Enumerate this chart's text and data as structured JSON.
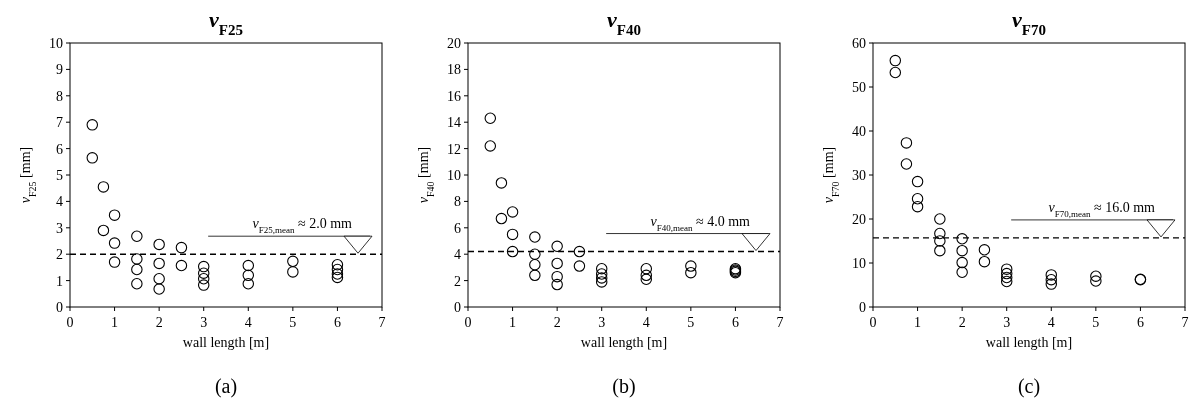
{
  "chart_data": [
    {
      "type": "scatter",
      "title": "v$_{F25}$",
      "xlabel": "wall length [m]",
      "ylabel": "v$_{F25}$ [mm]",
      "annotations": [
        "(a)"
      ],
      "marker": "circle",
      "grid": false,
      "xlim": [
        0,
        7
      ],
      "xticks": [
        0,
        1,
        2,
        3,
        4,
        5,
        6,
        7
      ],
      "ylim": [
        0,
        10
      ],
      "yticks": [
        0,
        1,
        2,
        3,
        4,
        5,
        6,
        7,
        8,
        9,
        10
      ],
      "ref_lines": [
        {
          "axis": "y",
          "value": 2.0,
          "label": "v$_{F25,mean}$ ≈ 2.0 mm",
          "line_style": "dashed",
          "color": "#000000"
        }
      ],
      "series": [
        {
          "color": "#000000",
          "x": [
            0.5,
            0.5,
            0.75,
            0.75,
            1,
            1,
            1,
            1.5,
            1.5,
            1.5,
            1.5,
            2,
            2,
            2,
            2,
            2.5,
            2.5,
            3,
            3,
            3,
            3,
            4,
            4,
            4,
            5,
            5,
            6,
            6,
            6,
            6
          ],
          "values": [
            6.9,
            5.65,
            4.55,
            2.9,
            3.48,
            2.42,
            1.7,
            2.68,
            1.82,
            1.42,
            0.88,
            2.37,
            1.65,
            1.07,
            0.68,
            2.25,
            1.57,
            1.53,
            1.28,
            1.07,
            0.83,
            1.57,
            1.2,
            0.88,
            1.73,
            1.33,
            1.6,
            1.42,
            1.25,
            1.12
          ]
        }
      ]
    },
    {
      "type": "scatter",
      "title": "v$_{F40}$",
      "xlabel": "wall length [m]",
      "ylabel": "v$_{F40}$ [mm]",
      "annotations": [
        "(b)"
      ],
      "marker": "circle",
      "grid": false,
      "xlim": [
        0,
        7
      ],
      "xticks": [
        0,
        1,
        2,
        3,
        4,
        5,
        6,
        7
      ],
      "ylim": [
        0,
        20
      ],
      "yticks": [
        0,
        2,
        4,
        6,
        8,
        10,
        12,
        14,
        16,
        18,
        20
      ],
      "ref_lines": [
        {
          "axis": "y",
          "value": 4.2,
          "label": "v$_{F40,mean}$ ≈ 4.0 mm",
          "line_style": "dashed",
          "color": "#000000"
        }
      ],
      "series": [
        {
          "color": "#000000",
          "x": [
            0.5,
            0.5,
            0.75,
            0.75,
            1,
            1,
            1,
            1.5,
            1.5,
            1.5,
            1.5,
            2,
            2,
            2,
            2,
            2.5,
            2.5,
            3,
            3,
            3,
            3,
            4,
            4,
            4,
            5,
            5,
            6,
            6,
            6,
            6
          ],
          "values": [
            14.3,
            12.2,
            9.4,
            6.7,
            7.2,
            5.5,
            4.2,
            5.3,
            4.0,
            3.2,
            2.4,
            4.6,
            3.3,
            2.3,
            1.7,
            4.2,
            3.1,
            2.9,
            2.5,
            2.2,
            1.9,
            2.9,
            2.4,
            2.1,
            3.1,
            2.6,
            2.9,
            2.8,
            2.7,
            2.6
          ]
        }
      ]
    },
    {
      "type": "scatter",
      "title": "v$_{F70}$",
      "xlabel": "wall length [m]",
      "ylabel": "v$_{F70}$ [mm]",
      "annotations": [
        "(c)"
      ],
      "marker": "circle",
      "grid": false,
      "xlim": [
        0,
        7
      ],
      "xticks": [
        0,
        1,
        2,
        3,
        4,
        5,
        6,
        7
      ],
      "ylim": [
        0,
        60
      ],
      "yticks": [
        0,
        10,
        20,
        30,
        40,
        50,
        60
      ],
      "ref_lines": [
        {
          "axis": "y",
          "value": 15.7,
          "label": "v$_{F70,mean}$ ≈ 16.0 mm",
          "line_style": "dashed",
          "color": "#000000"
        }
      ],
      "series": [
        {
          "color": "#000000",
          "x": [
            0.5,
            0.5,
            0.75,
            0.75,
            1,
            1,
            1,
            1.5,
            1.5,
            1.5,
            1.5,
            2,
            2,
            2,
            2,
            2.5,
            2.5,
            3,
            3,
            3,
            3,
            4,
            4,
            4,
            5,
            5,
            6,
            6
          ],
          "values": [
            56,
            53.3,
            37.3,
            32.5,
            28.5,
            24.6,
            22.8,
            20.0,
            16.7,
            15.0,
            12.8,
            15.5,
            12.8,
            10.1,
            7.9,
            13.0,
            10.3,
            8.6,
            7.6,
            6.7,
            5.8,
            7.3,
            6.2,
            5.2,
            7.0,
            5.9,
            6.3,
            6.2
          ]
        }
      ]
    }
  ]
}
